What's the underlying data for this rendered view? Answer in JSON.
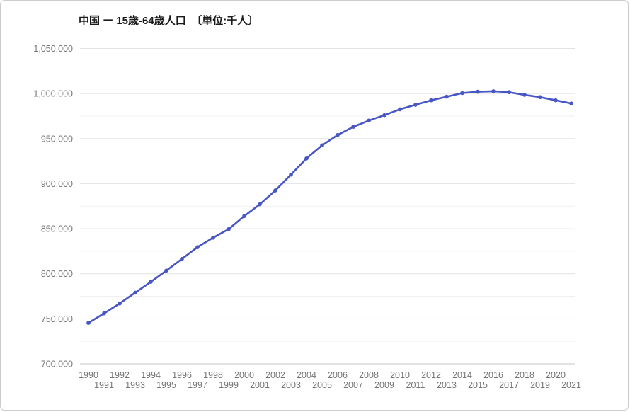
{
  "title": "中国 ー 15歳-64歳人口　〔単位:千人〕",
  "chart_data": {
    "type": "line",
    "title": "中国 ー 15歳-64歳人口　〔単位:千人〕",
    "series_name": "15歳-64歳人口",
    "unit": "千人",
    "x": [
      1990,
      1991,
      1992,
      1993,
      1994,
      1995,
      1996,
      1997,
      1998,
      1999,
      2000,
      2001,
      2002,
      2003,
      2004,
      2005,
      2006,
      2007,
      2008,
      2009,
      2010,
      2011,
      2012,
      2013,
      2014,
      2015,
      2016,
      2017,
      2018,
      2019,
      2020,
      2021
    ],
    "values": [
      745500,
      756000,
      767000,
      779000,
      791000,
      803500,
      816500,
      829500,
      840000,
      849500,
      864000,
      877000,
      892500,
      910000,
      928000,
      942500,
      954000,
      963000,
      970000,
      976000,
      982500,
      987500,
      992500,
      996500,
      1000500,
      1002000,
      1002500,
      1001500,
      998500,
      996000,
      992500,
      989000
    ],
    "ylim": [
      700000,
      1050000
    ],
    "y_major_step": 50000,
    "y_minor_step": 25000,
    "y_tick_labels": [
      "700,000",
      "750,000",
      "800,000",
      "850,000",
      "900,000",
      "950,000",
      "1,000,000",
      "1,050,000"
    ],
    "grid": true,
    "legend_position": "none",
    "line_color": "#4756c4",
    "point_color": "#4756c4",
    "major_grid_color": "#e2e2e2",
    "minor_grid_color": "#f0f0f0",
    "baseline_color": "#c4c4c4",
    "tick_label_color": "#757575"
  }
}
